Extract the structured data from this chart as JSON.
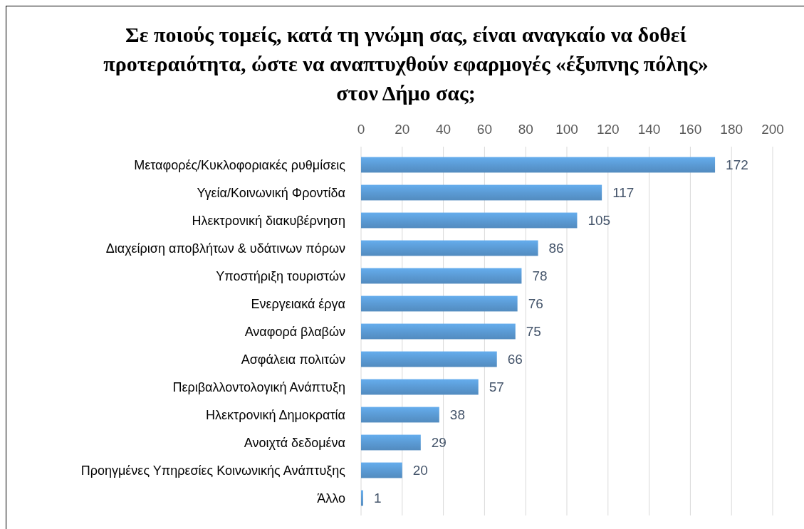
{
  "chart_data": {
    "type": "bar",
    "orientation": "horizontal",
    "title": "Σε ποιούς τομείς, κατά τη γνώμη σας, είναι αναγκαίο να δοθεί προτεραιότητα, ώστε να αναπτυχθούν εφαρμογές «έξυπνης πόλης» στον Δήμο σας;",
    "categories": [
      "Μεταφορές/Κυκλοφοριακές ρυθμίσεις",
      "Υγεία/Κοινωνική Φροντίδα",
      "Ηλεκτρονική διακυβέρνηση",
      "Διαχείριση αποβλήτων & υδάτινων πόρων",
      "Υποστήριξη τουριστών",
      "Ενεργειακά έργα",
      "Αναφορά βλαβών",
      "Ασφάλεια πολιτών",
      "Περιβαλλοντολογική Ανάπτυξη",
      "Ηλεκτρονική Δημοκρατία",
      "Ανοιχτά δεδομένα",
      "Προηγμένες Υπηρεσίες Κοινωνικής Ανάπτυξης",
      "Άλλο"
    ],
    "values": [
      172,
      117,
      105,
      86,
      78,
      76,
      75,
      66,
      57,
      38,
      29,
      20,
      1
    ],
    "color": "#5b9bd5",
    "xlim": [
      0,
      200
    ],
    "xticks": [
      0,
      20,
      40,
      60,
      80,
      100,
      120,
      140,
      160,
      180,
      200
    ],
    "grid": "x",
    "data_labels": true
  }
}
